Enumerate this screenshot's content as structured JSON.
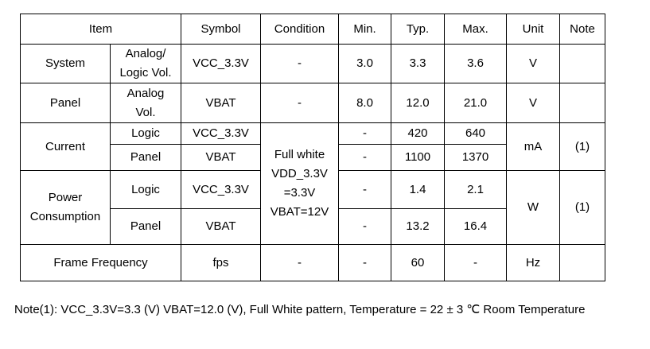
{
  "table": {
    "header": [
      "Item",
      "Symbol",
      "Condition",
      "Min.",
      "Typ.",
      "Max.",
      "Unit",
      "Note"
    ],
    "system": {
      "item": "System",
      "sub": "Analog/\nLogic Vol.",
      "symbol": "VCC_3.3V",
      "condition": "-",
      "min": "3.0",
      "typ": "3.3",
      "max": "3.6",
      "unit": "V"
    },
    "panel": {
      "item": "Panel",
      "sub": "Analog\nVol.",
      "symbol": "VBAT",
      "condition": "-",
      "min": "8.0",
      "typ": "12.0",
      "max": "21.0",
      "unit": "V"
    },
    "shared_condition": "Full white\nVDD_3.3V\n=3.3V\nVBAT=12V",
    "current": {
      "item": "Current",
      "unit": "mA",
      "note": "(1)",
      "rows": [
        {
          "sub": "Logic",
          "symbol": "VCC_3.3V",
          "min": "-",
          "typ": "420",
          "max": "640"
        },
        {
          "sub": "Panel",
          "symbol": "VBAT",
          "min": "-",
          "typ": "1100",
          "max": "1370"
        }
      ]
    },
    "power": {
      "item": "Power\nConsumption",
      "unit": "W",
      "note": "(1)",
      "rows": [
        {
          "sub": "Logic",
          "symbol": "VCC_3.3V",
          "min": "-",
          "typ": "1.4",
          "max": "2.1"
        },
        {
          "sub": "Panel",
          "symbol": "VBAT",
          "min": "-",
          "typ": "13.2",
          "max": "16.4"
        }
      ]
    },
    "frame": {
      "item": "Frame Frequency",
      "symbol": "fps",
      "condition": "-",
      "min": "-",
      "typ": "60",
      "max": "-",
      "unit": "Hz"
    }
  },
  "note": "Note(1): VCC_3.3V=3.3 (V) VBAT=12.0 (V), Full White pattern, Temperature = 22 ± 3 ℃ Room Temperature"
}
